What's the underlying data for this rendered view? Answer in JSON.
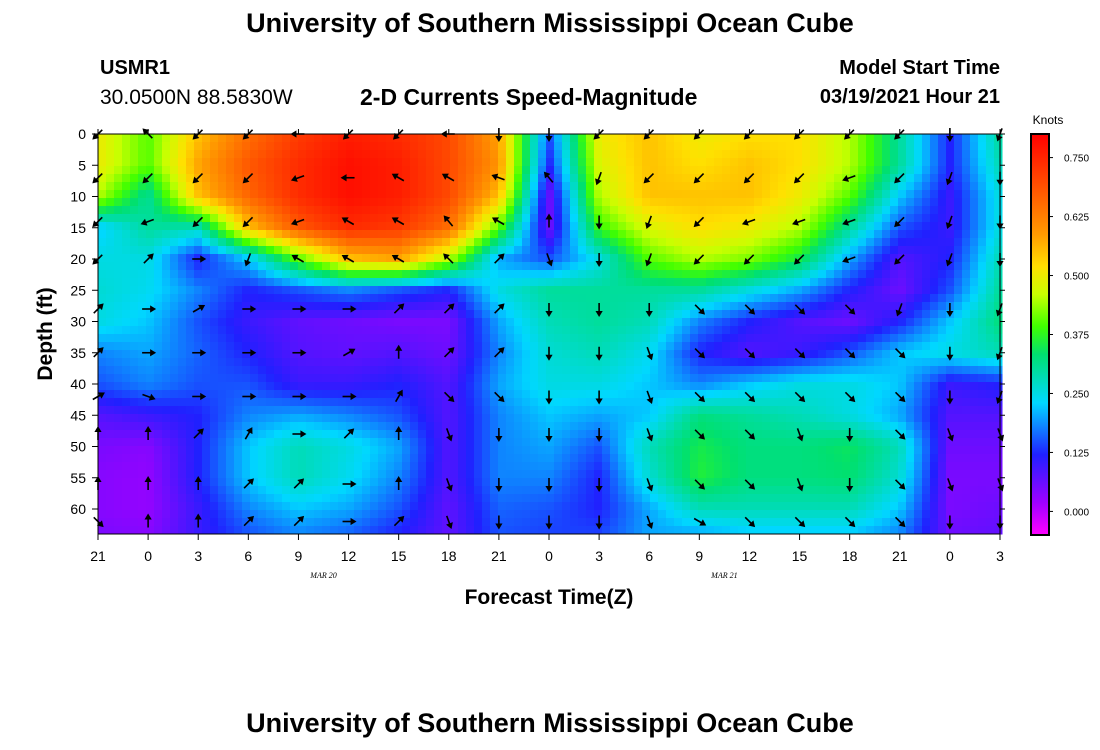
{
  "header": {
    "title": "University of Southern Mississippi Ocean Cube",
    "station_id": "USMR1",
    "station_coords": "30.0500N 88.5830W",
    "product_title": "2-D Currents Speed-Magnitude",
    "model_start_label": "Model Start Time",
    "model_start_value": "03/19/2021 Hour 21"
  },
  "footer": {
    "title": "University of Southern Mississippi Ocean Cube"
  },
  "chart_data": {
    "type": "heatmap",
    "xlabel": "Forecast Time(Z)",
    "ylabel": "Depth (ft)",
    "colorbar_label": "Knots",
    "x_tick_labels": [
      "21",
      "0",
      "3",
      "6",
      "9",
      "12",
      "15",
      "18",
      "21",
      "0",
      "3",
      "6",
      "9",
      "12",
      "15",
      "18",
      "21",
      "0",
      "3"
    ],
    "date_labels": [
      {
        "label": "MAR 20",
        "at_tick": 4.5
      },
      {
        "label": "MAR 21",
        "at_tick": 12.5
      }
    ],
    "y_ticks": [
      0,
      5,
      10,
      15,
      20,
      25,
      30,
      35,
      40,
      45,
      50,
      55,
      60
    ],
    "ylim": [
      0,
      64
    ],
    "x_hours": [
      21,
      0,
      3,
      6,
      9,
      12,
      15,
      18,
      21,
      0,
      3,
      6,
      9,
      12,
      15,
      18,
      21,
      0,
      3
    ],
    "depths_ft": [
      0,
      5,
      10,
      15,
      20,
      25,
      30,
      35,
      40,
      45,
      50,
      55,
      60,
      64
    ],
    "speed_knots": [
      [
        0.5,
        0.4,
        0.55,
        0.65,
        0.72,
        0.76,
        0.74,
        0.7,
        0.58,
        0.15,
        0.5,
        0.55,
        0.5,
        0.52,
        0.52,
        0.45,
        0.3,
        0.12,
        0.3
      ],
      [
        0.5,
        0.4,
        0.58,
        0.68,
        0.74,
        0.78,
        0.76,
        0.7,
        0.6,
        0.12,
        0.48,
        0.55,
        0.52,
        0.55,
        0.52,
        0.45,
        0.3,
        0.12,
        0.28
      ],
      [
        0.45,
        0.3,
        0.55,
        0.66,
        0.74,
        0.78,
        0.76,
        0.7,
        0.55,
        0.06,
        0.45,
        0.55,
        0.55,
        0.55,
        0.5,
        0.4,
        0.22,
        0.1,
        0.25
      ],
      [
        0.22,
        0.3,
        0.28,
        0.55,
        0.68,
        0.74,
        0.72,
        0.65,
        0.4,
        0.06,
        0.38,
        0.48,
        0.52,
        0.5,
        0.45,
        0.3,
        0.15,
        0.1,
        0.25
      ],
      [
        0.25,
        0.25,
        0.12,
        0.22,
        0.4,
        0.55,
        0.58,
        0.45,
        0.2,
        0.15,
        0.25,
        0.4,
        0.45,
        0.42,
        0.35,
        0.2,
        0.08,
        0.12,
        0.28
      ],
      [
        0.26,
        0.24,
        0.18,
        0.12,
        0.15,
        0.18,
        0.15,
        0.12,
        0.25,
        0.3,
        0.3,
        0.3,
        0.3,
        0.25,
        0.2,
        0.12,
        0.06,
        0.15,
        0.3
      ],
      [
        0.25,
        0.22,
        0.15,
        0.1,
        0.07,
        0.06,
        0.05,
        0.05,
        0.2,
        0.28,
        0.3,
        0.28,
        0.18,
        0.12,
        0.08,
        0.06,
        0.12,
        0.22,
        0.32
      ],
      [
        0.18,
        0.2,
        0.16,
        0.12,
        0.08,
        0.07,
        0.08,
        0.06,
        0.18,
        0.26,
        0.28,
        0.24,
        0.12,
        0.08,
        0.1,
        0.15,
        0.22,
        0.25,
        0.28
      ],
      [
        0.15,
        0.18,
        0.15,
        0.15,
        0.1,
        0.1,
        0.12,
        0.08,
        0.2,
        0.25,
        0.25,
        0.22,
        0.18,
        0.22,
        0.25,
        0.25,
        0.22,
        0.1,
        0.12
      ],
      [
        0.08,
        0.1,
        0.12,
        0.18,
        0.2,
        0.18,
        0.15,
        0.08,
        0.18,
        0.22,
        0.2,
        0.22,
        0.32,
        0.3,
        0.28,
        0.25,
        0.2,
        0.08,
        0.08
      ],
      [
        0.05,
        0.04,
        0.12,
        0.22,
        0.28,
        0.25,
        0.2,
        0.08,
        0.18,
        0.2,
        0.15,
        0.28,
        0.35,
        0.32,
        0.32,
        0.34,
        0.28,
        0.06,
        0.06
      ],
      [
        0.04,
        0.03,
        0.12,
        0.22,
        0.28,
        0.24,
        0.18,
        0.08,
        0.18,
        0.18,
        0.12,
        0.26,
        0.36,
        0.32,
        0.32,
        0.33,
        0.26,
        0.05,
        0.05
      ],
      [
        0.04,
        0.03,
        0.1,
        0.18,
        0.22,
        0.2,
        0.15,
        0.07,
        0.16,
        0.15,
        0.12,
        0.2,
        0.28,
        0.28,
        0.28,
        0.28,
        0.22,
        0.05,
        0.06
      ],
      [
        0.05,
        0.04,
        0.1,
        0.15,
        0.18,
        0.16,
        0.12,
        0.07,
        0.15,
        0.14,
        0.14,
        0.2,
        0.2,
        0.22,
        0.22,
        0.22,
        0.18,
        0.06,
        0.07
      ]
    ],
    "arrow_depths_ft": [
      0,
      7,
      14,
      20,
      28,
      35,
      42,
      48,
      56,
      62
    ],
    "arrow_direction_deg": [
      [
        225,
        315,
        225,
        225,
        270,
        225,
        225,
        270,
        180,
        180,
        225,
        225,
        225,
        225,
        225,
        225,
        225,
        180,
        200
      ],
      [
        225,
        225,
        225,
        225,
        250,
        270,
        300,
        300,
        290,
        320,
        200,
        225,
        225,
        225,
        225,
        250,
        225,
        200,
        180
      ],
      [
        225,
        250,
        225,
        225,
        250,
        300,
        300,
        320,
        300,
        0,
        180,
        200,
        225,
        250,
        250,
        250,
        225,
        200,
        180
      ],
      [
        225,
        45,
        90,
        200,
        300,
        300,
        300,
        315,
        45,
        160,
        180,
        200,
        225,
        225,
        225,
        250,
        225,
        200,
        180
      ],
      [
        45,
        90,
        60,
        90,
        90,
        90,
        45,
        45,
        45,
        180,
        180,
        180,
        135,
        135,
        135,
        135,
        200,
        180,
        200
      ],
      [
        45,
        90,
        90,
        90,
        90,
        60,
        0,
        45,
        45,
        180,
        180,
        160,
        135,
        135,
        135,
        135,
        135,
        180,
        200
      ],
      [
        60,
        110,
        90,
        90,
        90,
        90,
        30,
        135,
        135,
        180,
        180,
        160,
        135,
        135,
        135,
        135,
        135,
        180,
        200
      ],
      [
        0,
        0,
        45,
        30,
        90,
        45,
        0,
        160,
        180,
        180,
        180,
        160,
        135,
        135,
        160,
        180,
        135,
        160,
        160
      ],
      [
        0,
        0,
        0,
        45,
        45,
        90,
        0,
        160,
        180,
        180,
        180,
        160,
        135,
        135,
        160,
        180,
        135,
        160,
        160
      ],
      [
        135,
        0,
        0,
        45,
        45,
        90,
        45,
        160,
        180,
        180,
        180,
        160,
        120,
        135,
        135,
        135,
        135,
        180,
        180
      ]
    ],
    "colorbar": {
      "ticks": [
        "0.750",
        "0.625",
        "0.500",
        "0.375",
        "0.250",
        "0.125",
        "0.000"
      ],
      "range": [
        -0.05,
        0.8
      ]
    }
  }
}
